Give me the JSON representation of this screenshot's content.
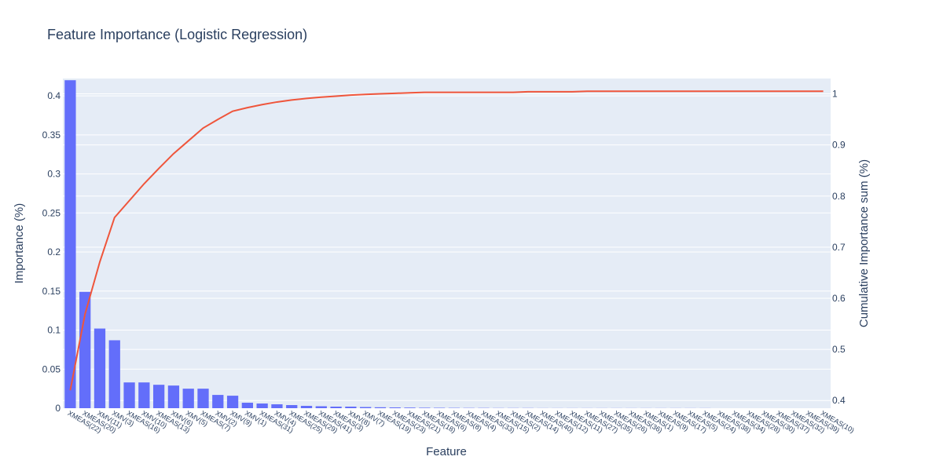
{
  "chart_data": {
    "type": "bar",
    "title": "Feature Importance (Logistic Regression)",
    "xlabel": "Feature",
    "ylabel": "Importance (%)",
    "y2label": "Cumulative Importance sum (%)",
    "ylim": [
      0,
      0.4222
    ],
    "y2lim": [
      0.385,
      1.03
    ],
    "yticks": [
      0,
      0.05,
      0.1,
      0.15,
      0.2,
      0.25,
      0.3,
      0.35,
      0.4
    ],
    "yticklabels": [
      "0",
      "0.05",
      "0.1",
      "0.15",
      "0.2",
      "0.25",
      "0.3",
      "0.35",
      "0.4"
    ],
    "y2ticks": [
      0.4,
      0.5,
      0.6,
      0.7,
      0.8,
      0.9,
      1.0
    ],
    "y2ticklabels": [
      "0.4",
      "0.5",
      "0.6",
      "0.7",
      "0.8",
      "0.9",
      "1"
    ],
    "grid": true,
    "colors": {
      "bars": "#636efa",
      "line": "#ef553b",
      "plot_bg": "#e5ecf6",
      "text": "#2a3f5f"
    },
    "categories": [
      "XMEAS(22)",
      "XMEAS(20)",
      "XMV(11)",
      "XMV(3)",
      "XMEAS(16)",
      "XMV(10)",
      "XMEAS(13)",
      "XMV(6)",
      "XMV(5)",
      "XMEAS(7)",
      "XMV(2)",
      "XMV(9)",
      "XMV(1)",
      "XMEAS(31)",
      "XMV(4)",
      "XMEAS(25)",
      "XMEAS(29)",
      "XMEAS(41)",
      "XMEAS(3)",
      "XMV(8)",
      "XMV(7)",
      "XMEAS(19)",
      "XMEAS(23)",
      "XMEAS(21)",
      "XMEAS(18)",
      "XMEAS(6)",
      "XMEAS(8)",
      "XMEAS(4)",
      "XMEAS(33)",
      "XMEAS(15)",
      "XMEAS(2)",
      "XMEAS(14)",
      "XMEAS(40)",
      "XMEAS(12)",
      "XMEAS(11)",
      "XMEAS(27)",
      "XMEAS(35)",
      "XMEAS(26)",
      "XMEAS(36)",
      "XMEAS(1)",
      "XMEAS(9)",
      "XMEAS(17)",
      "XMEAS(5)",
      "XMEAS(24)",
      "XMEAS(38)",
      "XMEAS(34)",
      "XMEAS(28)",
      "XMEAS(30)",
      "XMEAS(37)",
      "XMEAS(32)",
      "XMEAS(39)",
      "XMEAS(10)"
    ],
    "series": [
      {
        "type": "bar",
        "values": [
          0.42,
          0.149,
          0.102,
          0.087,
          0.033,
          0.033,
          0.03,
          0.029,
          0.025,
          0.025,
          0.017,
          0.016,
          0.007,
          0.006,
          0.005,
          0.004,
          0.003,
          0.0025,
          0.002,
          0.002,
          0.0015,
          0.0012,
          0.001,
          0.0008,
          0.0006,
          0.0005,
          0.0004,
          0.0003,
          0.0003,
          0.0002,
          0.0002,
          0.0002,
          0.0001,
          0.0001,
          0.0001,
          0.0001,
          0.0001,
          0.0001,
          0.0001,
          0.0001,
          0.0001,
          0.0001,
          0.0001,
          0.0001,
          0,
          0,
          0,
          0,
          0,
          0,
          0,
          0
        ]
      },
      {
        "type": "line",
        "axis": "y2",
        "values": [
          0.42,
          0.569,
          0.671,
          0.758,
          0.791,
          0.824,
          0.854,
          0.883,
          0.908,
          0.933,
          0.95,
          0.966,
          0.973,
          0.979,
          0.984,
          0.988,
          0.991,
          0.9935,
          0.9955,
          0.9975,
          0.999,
          1.0,
          1.001,
          1.002,
          1.003,
          1.003,
          1.003,
          1.003,
          1.003,
          1.003,
          1.003,
          1.004,
          1.004,
          1.004,
          1.004,
          1.005,
          1.005,
          1.005,
          1.005,
          1.005,
          1.005,
          1.005,
          1.005,
          1.005,
          1.005,
          1.005,
          1.005,
          1.005,
          1.005,
          1.005,
          1.005,
          1.005
        ]
      }
    ]
  }
}
